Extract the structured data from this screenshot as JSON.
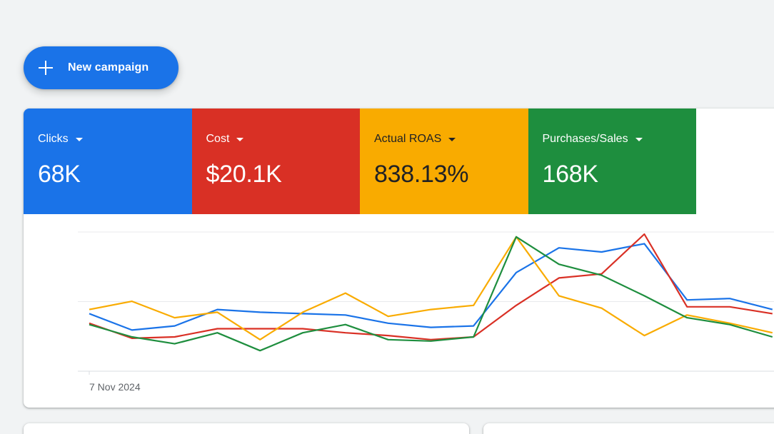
{
  "new_campaign": {
    "label": "New campaign",
    "icon": "plus-icon"
  },
  "metrics": [
    {
      "name": "Clicks",
      "value": "68K",
      "color": "#1a73e8"
    },
    {
      "name": "Cost",
      "value": "$20.1K",
      "color": "#d93025"
    },
    {
      "name": "Actual ROAS",
      "value": "838.13%",
      "color": "#f9ab00"
    },
    {
      "name": "Purchases/Sales",
      "value": "168K",
      "color": "#1e8e3e"
    }
  ],
  "chart_data": {
    "type": "line",
    "x_tick_labels": [
      "7 Nov 2024"
    ],
    "series": [
      {
        "color": "#1a73e8",
        "values": [
          0.42,
          0.3,
          0.33,
          0.45,
          0.43,
          0.42,
          0.41,
          0.35,
          0.32,
          0.33,
          0.72,
          0.9,
          0.87,
          0.93,
          0.52,
          0.53,
          0.45
        ]
      },
      {
        "color": "#d93025",
        "values": [
          0.35,
          0.24,
          0.25,
          0.31,
          0.31,
          0.31,
          0.28,
          0.26,
          0.23,
          0.25,
          0.48,
          0.68,
          0.71,
          1.0,
          0.47,
          0.47,
          0.42
        ]
      },
      {
        "color": "#f9ab00",
        "values": [
          0.45,
          0.51,
          0.39,
          0.43,
          0.23,
          0.43,
          0.57,
          0.4,
          0.45,
          0.48,
          0.98,
          0.55,
          0.46,
          0.26,
          0.41,
          0.35,
          0.28
        ]
      },
      {
        "color": "#1e8e3e",
        "values": [
          0.34,
          0.25,
          0.2,
          0.28,
          0.15,
          0.28,
          0.34,
          0.23,
          0.22,
          0.25,
          0.98,
          0.78,
          0.7,
          0.55,
          0.39,
          0.34,
          0.25
        ]
      }
    ],
    "gridlines": 3
  }
}
